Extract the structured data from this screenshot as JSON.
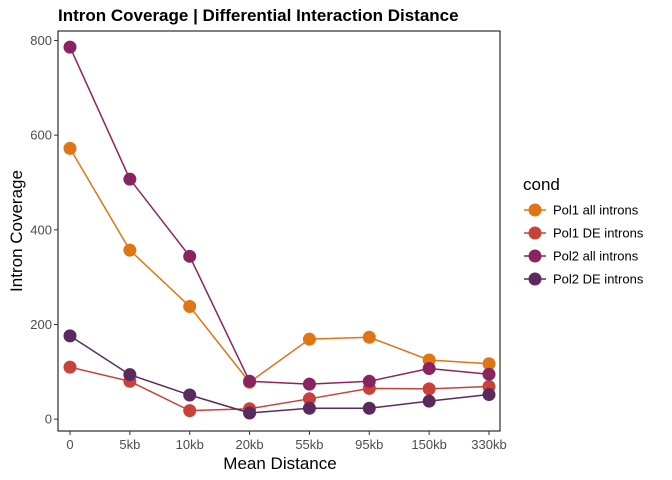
{
  "chart_data": {
    "type": "line",
    "title": "Intron Coverage | Differential Interaction Distance",
    "xlabel": "Mean Distance",
    "ylabel": "Intron Coverage",
    "categories": [
      "0",
      "5kb",
      "10kb",
      "20kb",
      "55kb",
      "95kb",
      "150kb",
      "330kb"
    ],
    "ylim": [
      -25,
      820
    ],
    "yticks": [
      0,
      200,
      400,
      600,
      800
    ],
    "grid": false,
    "legend_position": "right",
    "legend_title": "cond",
    "series": [
      {
        "name": "Pol1 all introns",
        "color": "#E07515",
        "values": [
          572,
          357,
          238,
          78,
          169,
          173,
          125,
          117
        ]
      },
      {
        "name": "Pol1 DE introns",
        "color": "#C8423A",
        "values": [
          110,
          80,
          18,
          22,
          43,
          65,
          64,
          69
        ]
      },
      {
        "name": "Pol2 all introns",
        "color": "#8A2460",
        "values": [
          786,
          507,
          344,
          80,
          74,
          80,
          107,
          95
        ]
      },
      {
        "name": "Pol2 DE introns",
        "color": "#5A2A5E",
        "values": [
          176,
          94,
          51,
          13,
          23,
          23,
          38,
          52
        ]
      }
    ]
  }
}
